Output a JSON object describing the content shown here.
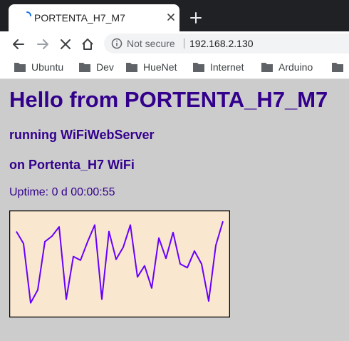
{
  "browser": {
    "tab": {
      "title": "PORTENTA_H7_M7"
    },
    "address_bar": {
      "security_label": "Not secure",
      "url": "192.168.2.130"
    },
    "bookmarks": [
      "Ubuntu",
      "Dev",
      "HueNet",
      "Internet",
      "Arduino"
    ],
    "icons": [
      "loading-spinner-icon",
      "close-icon",
      "plus-icon",
      "back-arrow-icon",
      "forward-arrow-icon",
      "stop-icon",
      "home-icon",
      "info-icon",
      "folder-icon"
    ]
  },
  "page": {
    "heading": "Hello from PORTENTA_H7_M7",
    "subheading_1": "running WiFiWebServer",
    "subheading_2": "on Portenta_H7 WiFi",
    "uptime": "Uptime: 0 d 00:00:55"
  },
  "chart_data": {
    "type": "line",
    "x": [
      1,
      2,
      3,
      4,
      5,
      6,
      7,
      8,
      9,
      10,
      11,
      12,
      13,
      14,
      15,
      16,
      17,
      18,
      19,
      20,
      21,
      22,
      23,
      24,
      25,
      26,
      27,
      28,
      29,
      30
    ],
    "series": [
      {
        "values": [
          85,
          72,
          8,
          22,
          74,
          80,
          90,
          12,
          58,
          54,
          74,
          92,
          12,
          85,
          55,
          68,
          92,
          36,
          48,
          24,
          78,
          56,
          84,
          50,
          46,
          64,
          50,
          10,
          70,
          96
        ]
      }
    ],
    "ylim": [
      0,
      100
    ],
    "grid": false,
    "colors": {
      "line": "#6600ff",
      "background": "#fae7cf",
      "border": "#000000"
    }
  }
}
